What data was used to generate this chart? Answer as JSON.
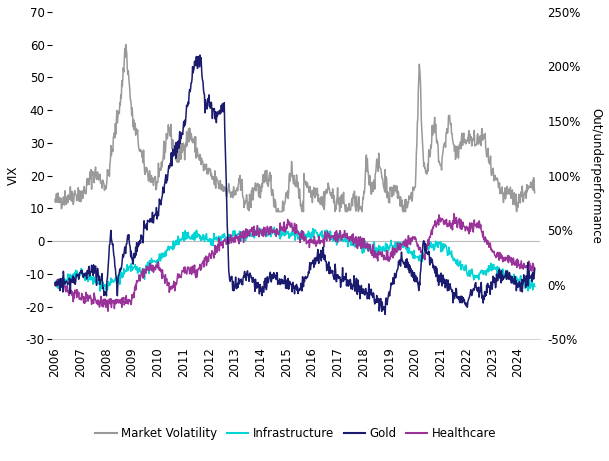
{
  "ylabel_left": "VIX",
  "ylabel_right": "Out/underperformance",
  "ylim_left": [
    -30,
    70
  ],
  "ylim_right": [
    -50,
    250
  ],
  "xlim": [
    2005.9,
    2024.85
  ],
  "xticks": [
    2006,
    2007,
    2008,
    2009,
    2010,
    2011,
    2012,
    2013,
    2014,
    2015,
    2016,
    2017,
    2018,
    2019,
    2020,
    2021,
    2022,
    2023,
    2024
  ],
  "yticks_left": [
    -30,
    -20,
    -10,
    0,
    10,
    20,
    30,
    40,
    50,
    60,
    70
  ],
  "yticks_right": [
    -50,
    0,
    50,
    100,
    150,
    200,
    250
  ],
  "colors": {
    "vix": "#999999",
    "infrastructure": "#00d4d4",
    "gold": "#1a1a6e",
    "healthcare": "#993399"
  },
  "legend_labels": [
    "Market Volatility",
    "Infrastructure",
    "Gold",
    "Healthcare"
  ],
  "background_color": "#ffffff",
  "zero_line_color": "#bbbbbb",
  "font_size": 8.5,
  "line_width": 1.1
}
